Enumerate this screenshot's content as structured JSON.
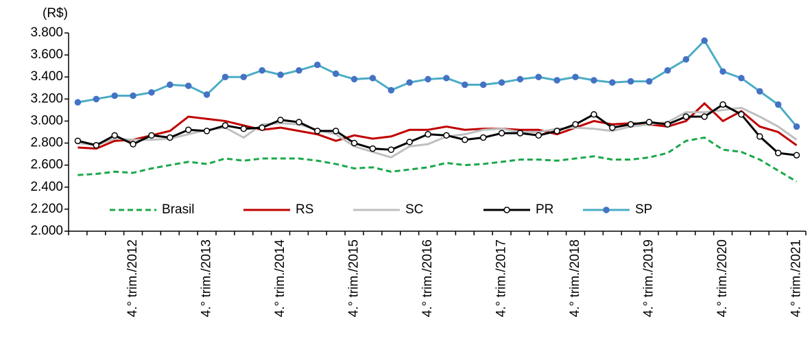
{
  "chart_data": {
    "type": "line",
    "y_label": "(R$)",
    "categories": [
      null,
      null,
      null,
      "4.° trim./2012",
      null,
      null,
      null,
      "4.° trim./2013",
      null,
      null,
      null,
      "4.° trim./2014",
      null,
      null,
      null,
      "4.° trim./2015",
      null,
      null,
      null,
      "4.° trim./2016",
      null,
      null,
      null,
      "4.° trim./2017",
      null,
      null,
      null,
      "4.° trim./2018",
      null,
      null,
      null,
      "4.° trim./2019",
      null,
      null,
      null,
      "4.° trim./2020",
      null,
      null,
      null,
      "4.° trim./2021"
    ],
    "series": [
      {
        "name": "Brasil",
        "color": "#1aa84a",
        "dashed": true,
        "marker": "none",
        "values": [
          2510,
          2520,
          2540,
          2530,
          2570,
          2600,
          2630,
          2610,
          2660,
          2640,
          2660,
          2660,
          2660,
          2640,
          2610,
          2570,
          2580,
          2540,
          2560,
          2580,
          2620,
          2600,
          2610,
          2630,
          2650,
          2650,
          2640,
          2660,
          2680,
          2650,
          2650,
          2670,
          2710,
          2820,
          2850,
          2740,
          2720,
          2650,
          2550,
          2450
        ]
      },
      {
        "name": "RS",
        "color": "#c00000",
        "dashed": false,
        "marker": "none",
        "values": [
          2760,
          2750,
          2820,
          2830,
          2870,
          2910,
          3040,
          3020,
          3000,
          2960,
          2920,
          2940,
          2910,
          2880,
          2820,
          2870,
          2840,
          2860,
          2920,
          2920,
          2950,
          2920,
          2930,
          2930,
          2920,
          2920,
          2880,
          2940,
          3000,
          2970,
          2980,
          2970,
          2950,
          3000,
          3160,
          3000,
          3090,
          2950,
          2900,
          2780
        ]
      },
      {
        "name": "SC",
        "color": "#bfbfbf",
        "dashed": false,
        "marker": "none",
        "values": [
          2800,
          2780,
          2840,
          2830,
          2830,
          2840,
          2880,
          2920,
          2940,
          2850,
          2970,
          2980,
          2970,
          2920,
          2880,
          2770,
          2720,
          2670,
          2770,
          2790,
          2860,
          2880,
          2920,
          2930,
          2900,
          2900,
          2930,
          2940,
          2930,
          2910,
          2950,
          2970,
          2990,
          3080,
          3080,
          3100,
          3120,
          3040,
          2950,
          2830
        ]
      },
      {
        "name": "PR",
        "color": "#000000",
        "dashed": false,
        "marker": "open",
        "values": [
          2820,
          2780,
          2870,
          2790,
          2870,
          2850,
          2920,
          2910,
          2960,
          2930,
          2940,
          3010,
          2990,
          2910,
          2910,
          2800,
          2750,
          2740,
          2810,
          2880,
          2870,
          2830,
          2850,
          2890,
          2890,
          2870,
          2910,
          2970,
          3060,
          2940,
          2970,
          2990,
          2970,
          3040,
          3040,
          3150,
          3060,
          2860,
          2710,
          2690
        ]
      },
      {
        "name": "SP",
        "color": "#4bacc6",
        "marker_color": "#4472c4",
        "dashed": false,
        "marker": "filled",
        "values": [
          3170,
          3200,
          3230,
          3230,
          3260,
          3330,
          3320,
          3240,
          3400,
          3400,
          3460,
          3420,
          3460,
          3510,
          3430,
          3380,
          3390,
          3280,
          3350,
          3380,
          3390,
          3330,
          3330,
          3350,
          3380,
          3400,
          3370,
          3400,
          3370,
          3350,
          3360,
          3360,
          3460,
          3560,
          3730,
          3450,
          3390,
          3270,
          3150,
          2950
        ]
      }
    ],
    "ylim": [
      2000,
      3800
    ],
    "yticks": [
      {
        "value": 2000,
        "label": "2.000"
      },
      {
        "value": 2200,
        "label": "2.200"
      },
      {
        "value": 2400,
        "label": "2.400"
      },
      {
        "value": 2600,
        "label": "2.600"
      },
      {
        "value": 2800,
        "label": "2.800"
      },
      {
        "value": 3000,
        "label": "3.000"
      },
      {
        "value": 3200,
        "label": "3.200"
      },
      {
        "value": 3400,
        "label": "3.400"
      },
      {
        "value": 3600,
        "label": "3.600"
      },
      {
        "value": 3800,
        "label": "3.800"
      }
    ]
  }
}
